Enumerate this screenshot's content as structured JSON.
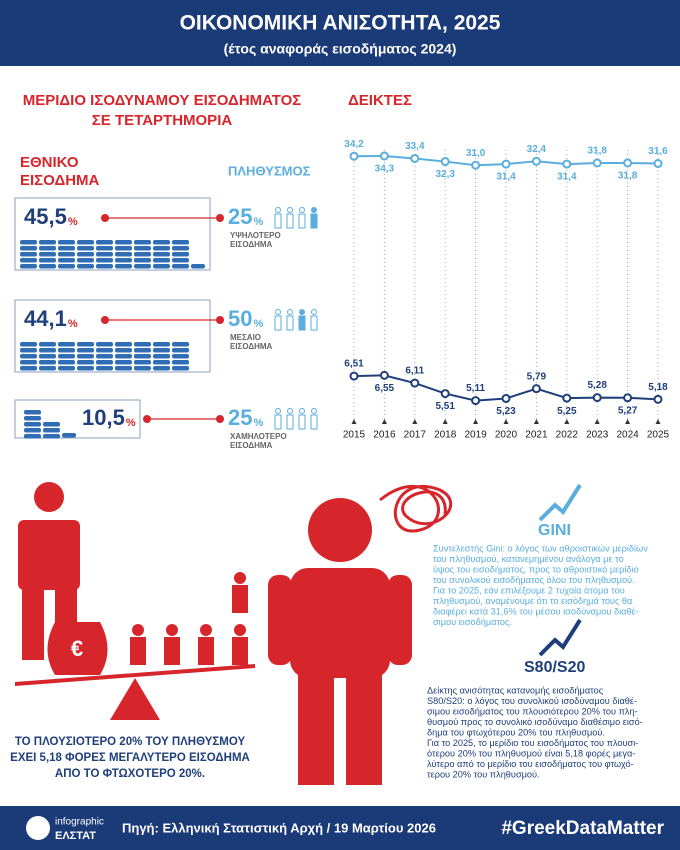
{
  "header": {
    "title": "ΟΙΚΟΝΟΜΙΚΗ ΑΝΙΣΟΤΗΤΑ, 2025",
    "subtitle": "(έτος αναφοράς εισοδήματος 2024)"
  },
  "shares": {
    "title": [
      "ΜΕΡΙΔΙΟ ΙΣΟΔΥΝΑΜΟΥ ΕΙΣΟΔΗΜΑΤΟΣ",
      "ΣΕ ΤΕΤΑΡΤΗΜΟΡΙΑ"
    ],
    "income_label": [
      "ΕΘΝΙΚΟ",
      "ΕΙΣΟΔΗΜΑ"
    ],
    "population_label": "ΠΛΗΘΥΣΜΟΣ",
    "rows": [
      {
        "income": "45,5",
        "income_unit": "%",
        "population": "25",
        "population_unit": "%",
        "group": [
          "ΥΨΗΛΟΤΕΡΟ",
          "ΕΙΣΟΔΗΜΑ"
        ]
      },
      {
        "income": "44,1",
        "income_unit": "%",
        "population": "50",
        "population_unit": "%",
        "group": [
          "ΜΕΣΑΙΟ",
          "ΕΙΣΟΔΗΜΑ"
        ]
      },
      {
        "income": "10,5",
        "income_unit": "%",
        "population": "25",
        "population_unit": "%",
        "group": [
          "ΧΑΜΗΛΟΤΕΡΟ",
          "ΕΙΣΟΔΗΜΑ"
        ]
      }
    ]
  },
  "chart_data": {
    "type": "line",
    "title": "ΔΕΙΚΤΕΣ",
    "categories": [
      "2015",
      "2016",
      "2017",
      "2018",
      "2019",
      "2020",
      "2021",
      "2022",
      "2023",
      "2024",
      "2025"
    ],
    "ylim": [
      -60,
      40
    ],
    "y2lim": [
      4,
      20
    ],
    "series": [
      {
        "name": "GINI",
        "color": "#5aaedd",
        "values": [
          34.2,
          34.3,
          33.4,
          32.3,
          31.0,
          31.4,
          32.4,
          31.4,
          31.8,
          31.8,
          31.6
        ],
        "value_labels": [
          "34,2",
          "34,3",
          "33,4",
          "32,3",
          "31,0",
          "31,4",
          "32,4",
          "31,4",
          "31,8",
          "31,8",
          "31,6"
        ]
      },
      {
        "name": "S80/S20",
        "color": "#1f3f7a",
        "axis": "y2",
        "values": [
          6.51,
          6.55,
          6.11,
          5.51,
          5.11,
          5.23,
          5.79,
          5.25,
          5.28,
          5.27,
          5.18
        ],
        "value_labels": [
          "6,51",
          "6,55",
          "6,11",
          "5,51",
          "5,11",
          "5,23",
          "5,79",
          "5,25",
          "5,28",
          "5,27",
          "5,18"
        ]
      }
    ]
  },
  "gini_note": [
    "Συντελεστής Gini: ο λόγος των αθροιστικών μεριδίων",
    "του πληθυσμού, κατανεμημένου ανάλογα με το",
    "ύψος του εισοδήματος, προς το αθροιστικό μερίδιο",
    "του συνολικού εισοδήματος όλου του πληθυσμού.",
    "Για το 2025, εάν επιλέξουμε 2 τυχαία άτομα του",
    "πληθυσμού, αναμένουμε ότι το εισόδημά τους θα",
    "διαφέρει κατά 31,6% του μέσου ισοδύναμου διαθέ-",
    "σιμου εισοδήματος."
  ],
  "s80_note": [
    "Δείκτης ανισότητας κατανομής εισοδήματος",
    "S80/S20: ο λόγος του συνολικού ισοδύναμου διαθέ-",
    "σιμου εισοδήματος του πλουσιότερου 20% του πλη-",
    "θυσμού προς το συνολικό ισοδύναμο διαθέσιμο εισό-",
    "δημα του φτωχότερου 20% του πληθυσμού.",
    "Για το 2025, το μερίδιο του εισοδήματος του πλουσι-",
    "ότερου 20% του πληθυσμού είναι 5,18 φορές μεγα-",
    "λύτερο από το μερίδιο του εισοδήματος του φτωχό-",
    "τερου 20% του πληθυσμού."
  ],
  "caption": [
    "ΤΟ ΠΛΟΥΣΙΟΤΕΡΟ 20% ΤΟΥ ΠΛΗΘΥΣΜΟΥ",
    "ΕΧΕΙ 5,18 ΦΟΡΕΣ ΜΕΓΑΛΥΤΕΡΟ ΕΙΣΟΔΗΜΑ",
    "ΑΠΟ ΤΟ ΦΤΩΧΟΤΕΡΟ 20%."
  ],
  "footer": {
    "brand": [
      "infographic",
      "ΕΛΣΤΑΤ"
    ],
    "source": "Πηγή: Ελληνική Στατιστική Αρχή / 19 Μαρτίου 2026",
    "hashtag": "#GreekDataMatter"
  }
}
